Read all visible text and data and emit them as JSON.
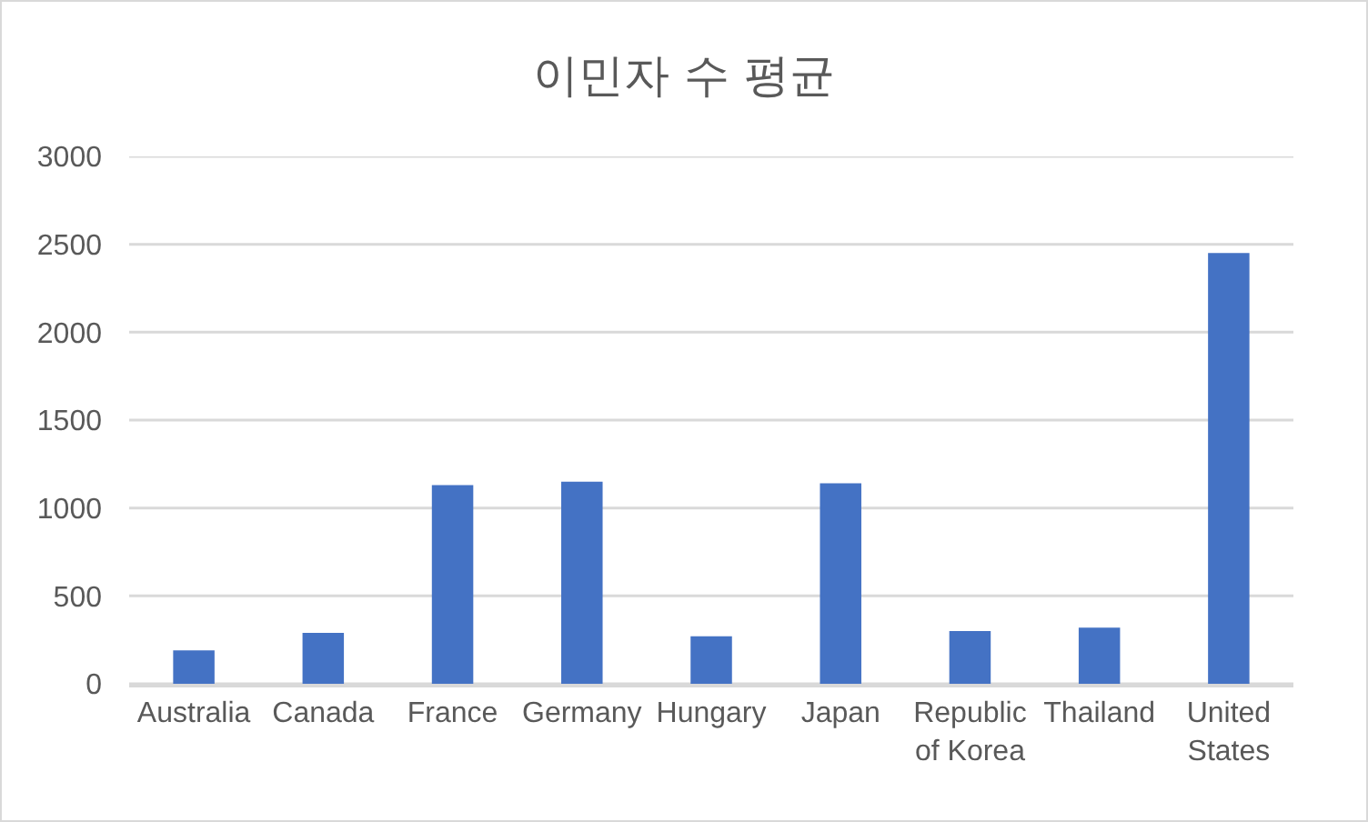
{
  "chart_data": {
    "type": "bar",
    "title": "이민자 수 평균",
    "categories": [
      "Australia",
      "Canada",
      "France",
      "Germany",
      "Hungary",
      "Japan",
      "Republic of Korea",
      "Thailand",
      "United States"
    ],
    "values": [
      190,
      290,
      1130,
      1150,
      270,
      1140,
      300,
      320,
      2450
    ],
    "color": "#4472c4",
    "ylim": [
      0,
      3000
    ],
    "yticks": [
      0,
      500,
      1000,
      1500,
      2000,
      2500,
      3000
    ],
    "grid": "y"
  }
}
